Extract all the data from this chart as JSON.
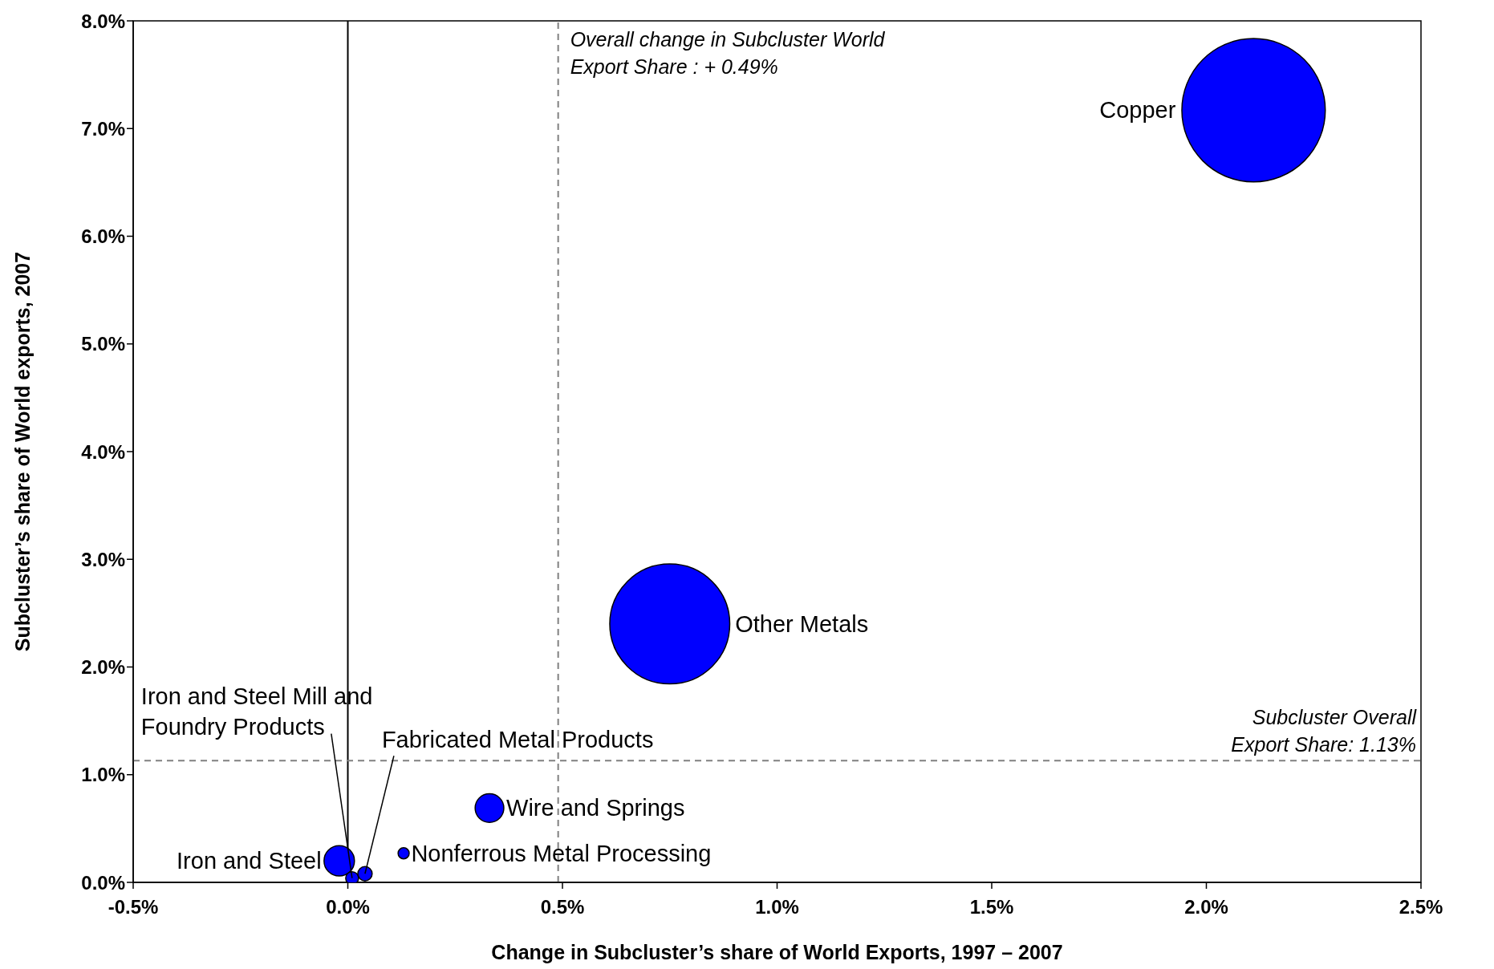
{
  "chart_data": {
    "type": "bubble",
    "xlabel": "Change in Subcluster’s share of World Exports, 1997 – 2007",
    "ylabel": "Subcluster’s share of World exports, 2007",
    "x": [
      2.11,
      0.75,
      0.33,
      0.13,
      -0.02,
      0.01,
      0.04
    ],
    "values": [
      7.17,
      2.4,
      0.69,
      0.27,
      0.2,
      0.04,
      0.08
    ],
    "sizes": [
      1,
      0.7,
      0.04,
      0.006,
      0.045,
      0.008,
      0.01
    ],
    "color": "#0000ff",
    "xlim": [
      -0.5,
      2.5
    ],
    "xticks": [
      {
        "value": -0.5,
        "label": "-0.5%"
      },
      {
        "value": 0,
        "label": "0.0%"
      },
      {
        "value": 0.5,
        "label": "0.5%"
      },
      {
        "value": 1,
        "label": "1.0%"
      },
      {
        "value": 1.5,
        "label": "1.5%"
      },
      {
        "value": 2,
        "label": "2.0%"
      },
      {
        "value": 2.5,
        "label": "2.5%"
      }
    ],
    "ylim": [
      0,
      8
    ],
    "yticks": [
      {
        "value": 0,
        "label": "0.0%"
      },
      {
        "value": 1,
        "label": "1.0%"
      },
      {
        "value": 2,
        "label": "2.0%"
      },
      {
        "value": 3,
        "label": "3.0%"
      },
      {
        "value": 4,
        "label": "4.0%"
      },
      {
        "value": 5,
        "label": "5.0%"
      },
      {
        "value": 6,
        "label": "6.0%"
      },
      {
        "value": 7,
        "label": "7.0%"
      },
      {
        "value": 8,
        "label": "8.0%"
      }
    ],
    "grid": false,
    "legend": false,
    "ref_lines": [
      {
        "axis": "x",
        "value": 0,
        "label": null,
        "color": "#000000",
        "line_style": "solid"
      },
      {
        "axis": "x",
        "value": 0.49,
        "label": "Overall change in Subcluster World\nExport Share :  + 0.49%",
        "color": "#808080",
        "line_style": "dashed"
      },
      {
        "axis": "y",
        "value": 1.13,
        "label": "Subcluster Overall\nExport Share: 1.13%",
        "color": "#808080",
        "line_style": "dashed"
      }
    ],
    "annotations": [
      "Copper",
      {
        "text": "Other Metals",
        "x": 0.75,
        "y": 2.4
      },
      {
        "text": "Wire and Springs",
        "x": 0.33,
        "y": 0.69
      },
      {
        "text": "Nonferrous Metal Processing",
        "x": 0.13,
        "y": 0.27
      },
      {
        "text": "Iron and Steel",
        "x": -0.02,
        "y": 0.2
      },
      {
        "text": "Iron and Steel Mill and\nFoundry Products",
        "x": 0.01,
        "y": 0.04
      },
      {
        "text": "Fabricated Metal Products",
        "x": 0.04,
        "y": 0.08
      }
    ]
  }
}
